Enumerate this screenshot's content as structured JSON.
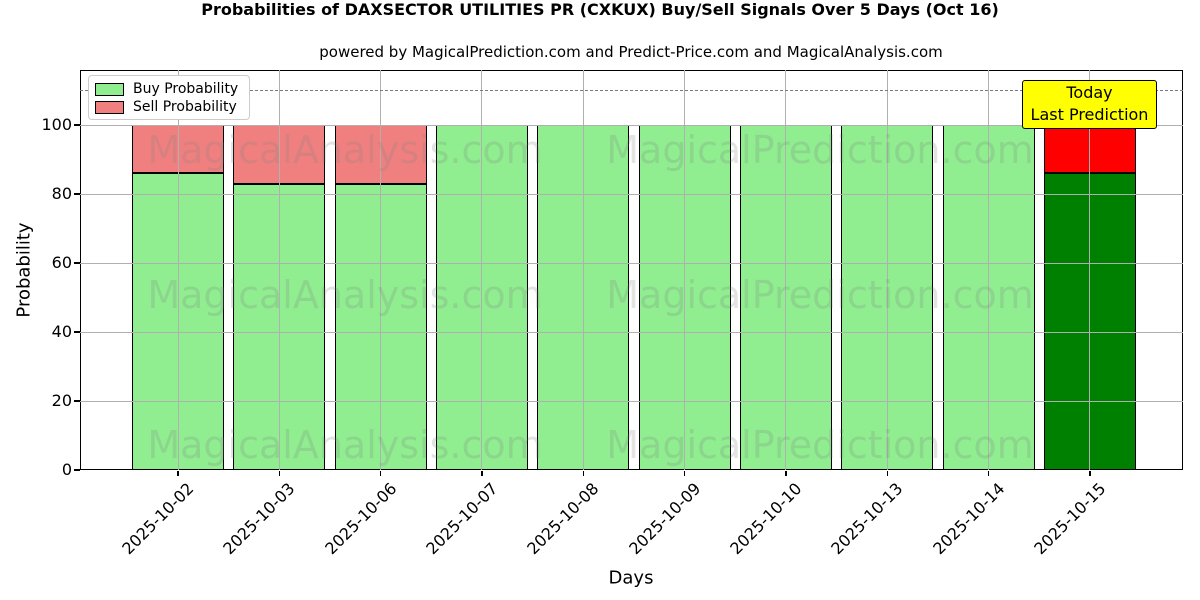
{
  "title": "Probabilities of DAXSECTOR UTILITIES PR (CXKUX) Buy/Sell Signals Over 5 Days (Oct 16)",
  "subtitle": "powered by MagicalPrediction.com and Predict-Price.com and MagicalAnalysis.com",
  "chart_data": {
    "type": "bar",
    "stacked": true,
    "categories": [
      "2025-10-02",
      "2025-10-03",
      "2025-10-06",
      "2025-10-07",
      "2025-10-08",
      "2025-10-09",
      "2025-10-10",
      "2025-10-13",
      "2025-10-14",
      "2025-10-15"
    ],
    "series": [
      {
        "name": "Buy Probability",
        "values": [
          86,
          83,
          83,
          100,
          100,
          100,
          100,
          100,
          100,
          86
        ],
        "color": "#90EE90",
        "today_color": "#008000"
      },
      {
        "name": "Sell Probability",
        "values": [
          14,
          17,
          17,
          0,
          0,
          0,
          0,
          0,
          0,
          14
        ],
        "color": "#F08080",
        "today_color": "#FF0000"
      }
    ],
    "today_index": 9,
    "xlabel": "Days",
    "ylabel": "Probability",
    "yticks": [
      0,
      20,
      40,
      60,
      80,
      100
    ],
    "ylim": [
      0,
      116
    ],
    "threshold_line": {
      "y": 110,
      "style": "dashed",
      "color": "#7a7a7a"
    },
    "grid": true,
    "grid_color": "#b0b0b0",
    "legend_position": "upper-left",
    "bar_edge_color": "#000000"
  },
  "annotation": {
    "lines": [
      "Today",
      "Last Prediction"
    ],
    "bg_color": "#FFFF00"
  },
  "watermarks": {
    "texts": [
      "MagicalAnalysis.com",
      "MagicalPrediction.com"
    ],
    "color": "rgba(128,128,128,0.22)"
  }
}
